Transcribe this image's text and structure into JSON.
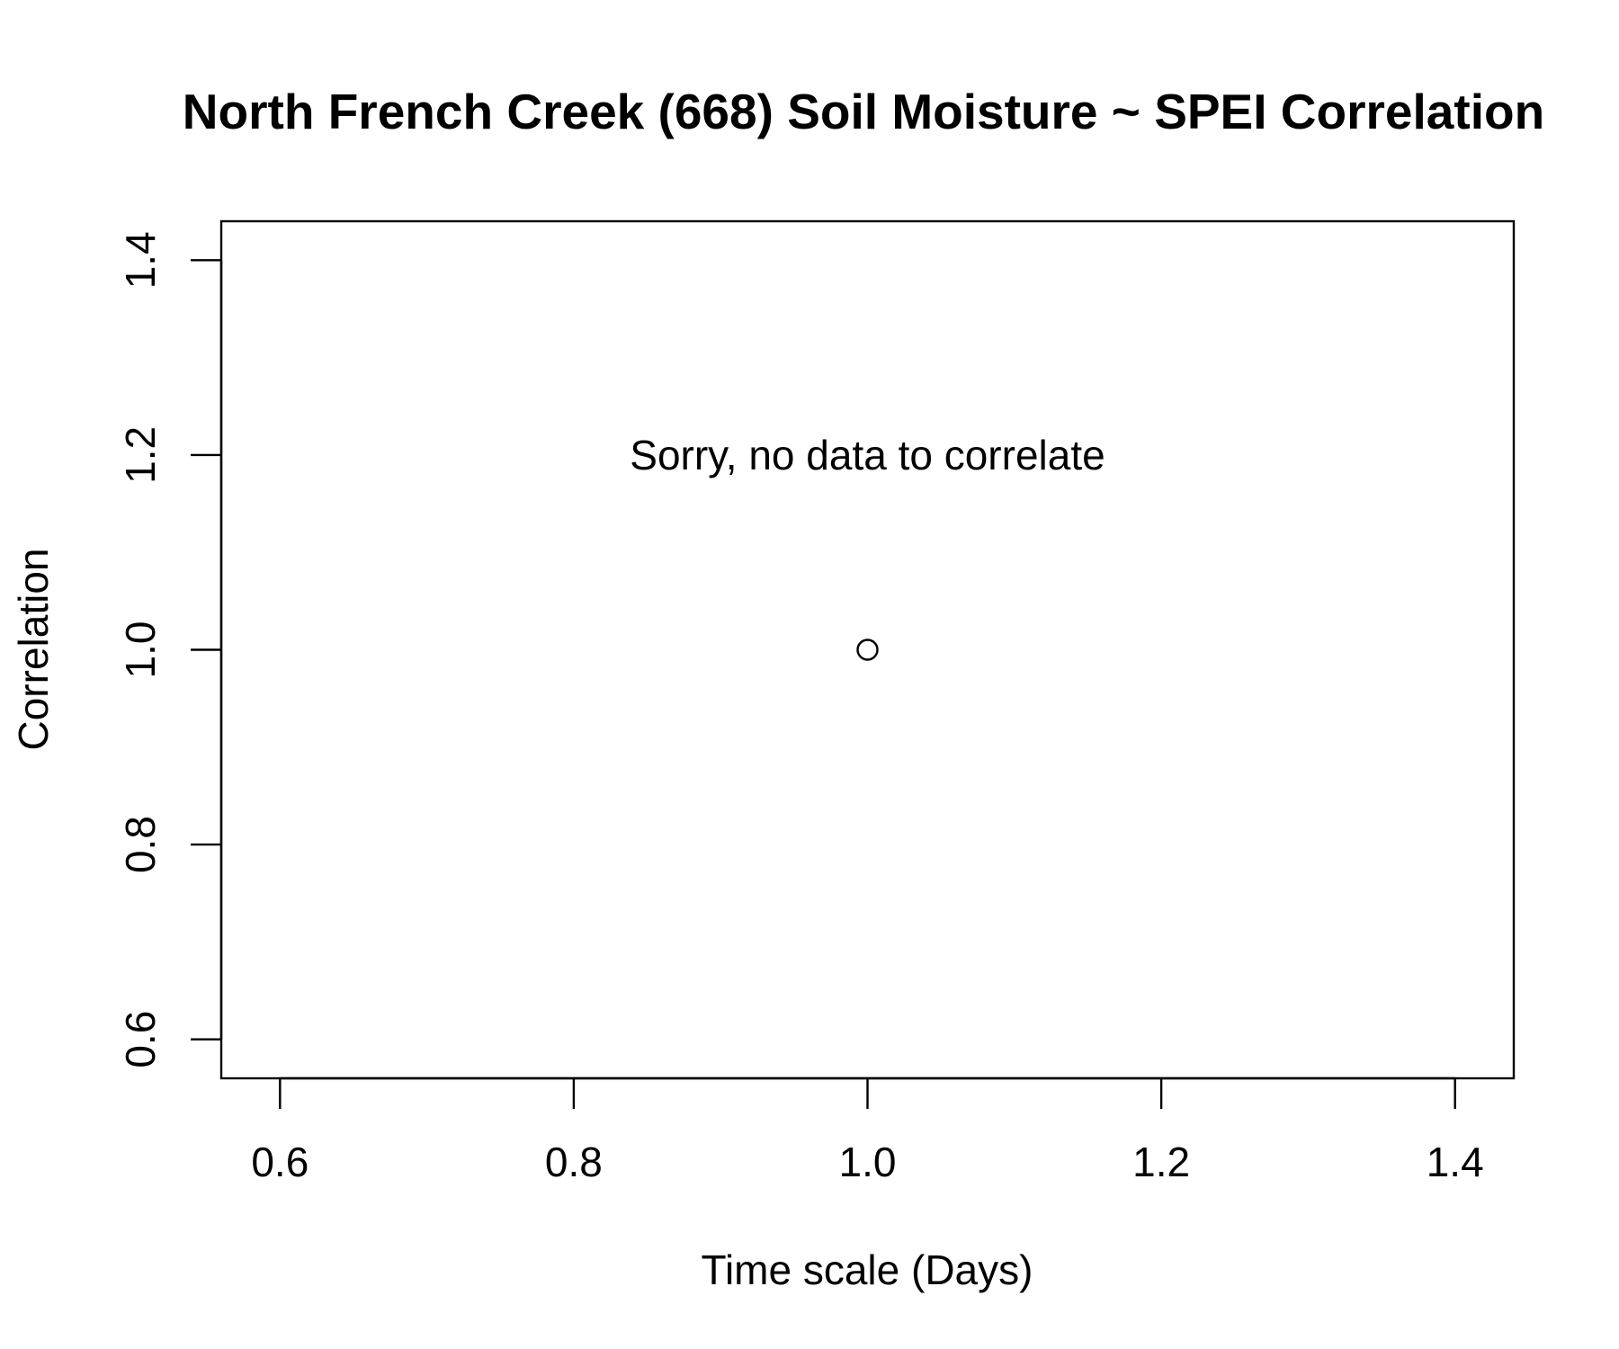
{
  "chart_data": {
    "type": "scatter",
    "title": "North French Creek (668) Soil Moisture ~ SPEI Correlation",
    "xlabel": "Time scale (Days)",
    "ylabel": "Correlation",
    "xlim": [
      0.56,
      1.44
    ],
    "ylim": [
      0.56,
      1.44
    ],
    "x_ticks": [
      0.6,
      0.8,
      1.0,
      1.2,
      1.4
    ],
    "x_tick_labels": [
      "0.6",
      "0.8",
      "1.0",
      "1.2",
      "1.4"
    ],
    "y_ticks": [
      0.6,
      0.8,
      1.0,
      1.2,
      1.4
    ],
    "y_tick_labels": [
      "0.6",
      "0.8",
      "1.0",
      "1.2",
      "1.4"
    ],
    "grid": false,
    "series": [
      {
        "points": [
          {
            "x": 1.0,
            "y": 1.0
          }
        ]
      }
    ],
    "annotations": [
      {
        "text": "Sorry, no data to correlate",
        "x": 1.0,
        "y": 1.2
      }
    ]
  }
}
